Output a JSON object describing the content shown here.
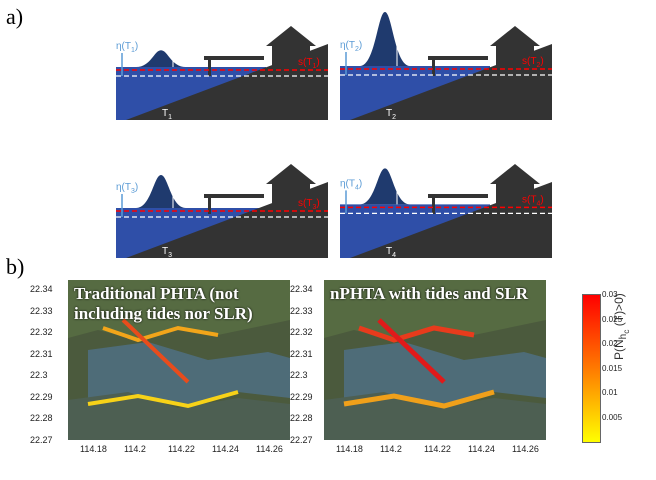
{
  "panel_a": {
    "label": "a)",
    "scenarios": [
      {
        "eta": "η(T",
        "eta_sub": "1",
        "h": "H",
        "h_sub": "1",
        "s": "s(T",
        "s_sub": "1",
        "t": "T",
        "t_sub": "1",
        "wave_height": 0.28,
        "tide_level": 0.35
      },
      {
        "eta": "η(T",
        "eta_sub": "2",
        "h": "H",
        "h_sub": "2",
        "s": "s(T",
        "s_sub": "2",
        "t": "T",
        "t_sub": "2",
        "wave_height": 0.9,
        "tide_level": 0.4
      },
      {
        "eta": "η(T",
        "eta_sub": "3",
        "h": "H",
        "h_sub": "3",
        "s": "s(T",
        "s_sub": "3",
        "t": "T",
        "t_sub": "3",
        "wave_height": 0.55,
        "tide_level": 0.2
      },
      {
        "eta": "η(T",
        "eta_sub": "4",
        "h": "H",
        "h_sub": "4",
        "s": "s(T",
        "s_sub": "4",
        "t": "T",
        "t_sub": "4",
        "wave_height": 0.6,
        "tide_level": 0.38
      }
    ]
  },
  "panel_b": {
    "label": "b)",
    "left_map": {
      "title_line1": "Traditional PHTA (not",
      "title_line2": "including tides nor SLR)"
    },
    "right_map": {
      "title_line1": "nPHTA with tides and SLR"
    },
    "y_ticks": [
      "22.34",
      "22.33",
      "22.32",
      "22.31",
      "22.3",
      "22.29",
      "22.28",
      "22.27"
    ],
    "x_ticks": [
      "114.18",
      "114.2",
      "114.22",
      "114.24",
      "114.26"
    ],
    "colorbar": {
      "label": "P(N",
      "label_sub": "h",
      "label_sub2": "c",
      "label_end": " (T)>0)",
      "ticks": [
        "0.03",
        "0.025",
        "0.02",
        "0.015",
        "0.01",
        "0.005"
      ],
      "color_high": "#ff0000",
      "color_low": "#ffff00"
    }
  },
  "colors": {
    "sea": "#2f4fa8",
    "land": "#333333",
    "wave": "#1f3a6e",
    "eta_arrow": "#5b9bd5",
    "s_line": "#ff0000",
    "datum_line": "#ffffff"
  }
}
